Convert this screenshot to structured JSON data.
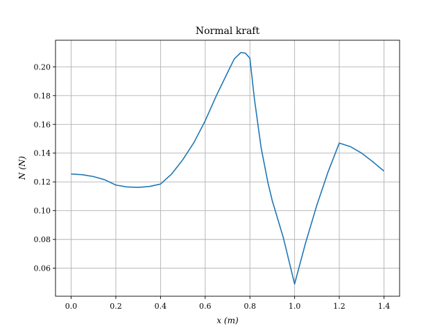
{
  "chart_data": {
    "type": "line",
    "title": "Normal kraft",
    "xlabel": "x (m)",
    "ylabel": "N (N)",
    "xlim": [
      -0.07,
      1.47
    ],
    "ylim": [
      0.0405,
      0.2185
    ],
    "xticks": [
      0.0,
      0.2,
      0.4,
      0.6,
      0.8,
      1.0,
      1.2,
      1.4
    ],
    "xtick_labels": [
      "0.0",
      "0.2",
      "0.4",
      "0.6",
      "0.8",
      "1.0",
      "1.2",
      "1.4"
    ],
    "yticks": [
      0.06,
      0.08,
      0.1,
      0.12,
      0.14,
      0.16,
      0.18,
      0.2
    ],
    "ytick_labels": [
      "0.06",
      "0.08",
      "0.10",
      "0.12",
      "0.14",
      "0.16",
      "0.18",
      "0.20"
    ],
    "grid": true,
    "series": [
      {
        "color": "#1f77b4",
        "x": [
          0.0,
          0.05,
          0.1,
          0.15,
          0.2,
          0.25,
          0.3,
          0.35,
          0.4,
          0.45,
          0.5,
          0.55,
          0.6,
          0.65,
          0.7,
          0.73,
          0.76,
          0.78,
          0.8,
          0.82,
          0.85,
          0.88,
          0.9,
          0.95,
          1.0,
          1.05,
          1.1,
          1.15,
          1.2,
          1.25,
          1.3,
          1.35,
          1.4
        ],
        "y": [
          0.1255,
          0.125,
          0.1237,
          0.1215,
          0.1178,
          0.1165,
          0.1162,
          0.1168,
          0.1185,
          0.1255,
          0.1355,
          0.1475,
          0.1625,
          0.18,
          0.196,
          0.2055,
          0.21,
          0.2095,
          0.206,
          0.178,
          0.144,
          0.12,
          0.107,
          0.081,
          0.049,
          0.078,
          0.104,
          0.127,
          0.147,
          0.1445,
          0.14,
          0.134,
          0.1275
        ]
      }
    ]
  }
}
